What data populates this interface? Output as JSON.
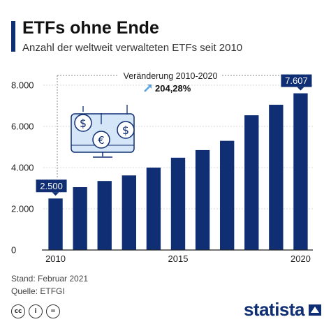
{
  "header": {
    "title": "ETFs ohne Ende",
    "subtitle": "Anzahl der weltweit verwalteten ETFs seit 2010"
  },
  "colors": {
    "bar": "#0f2e73",
    "accent": "#0f2e73",
    "arrow": "#5ba3e0",
    "icon_fill": "#d4e6f7",
    "icon_stroke": "#0f2e73"
  },
  "chart_data": {
    "type": "bar",
    "title": "ETFs ohne Ende",
    "subtitle": "Anzahl der weltweit verwalteten ETFs seit 2010",
    "categories": [
      "2010",
      "2011",
      "2012",
      "2013",
      "2014",
      "2015",
      "2016",
      "2017",
      "2018",
      "2019",
      "2020"
    ],
    "x_tick_labels": [
      "2010",
      "2015",
      "2020"
    ],
    "values": [
      2500,
      3050,
      3350,
      3620,
      4000,
      4480,
      4850,
      5300,
      6540,
      7050,
      7607
    ],
    "ylim": [
      0,
      8000
    ],
    "y_ticks": [
      0,
      2000,
      4000,
      6000,
      8000
    ],
    "y_tick_labels": [
      "0",
      "2.000",
      "4.000",
      "6.000",
      "8.000"
    ],
    "grid": true,
    "callouts": {
      "first": "2.500",
      "last": "7.607"
    },
    "annotation": {
      "label": "Veränderung 2010-2020",
      "value": "204,28%"
    }
  },
  "footer": {
    "stand": "Stand: Februar 2021",
    "quelle": "Quelle: ETFGI",
    "license_icons": [
      "cc-icon",
      "by-icon",
      "nd-icon"
    ],
    "license_symbols": [
      "cc",
      "i",
      "="
    ],
    "brand": "statista"
  }
}
